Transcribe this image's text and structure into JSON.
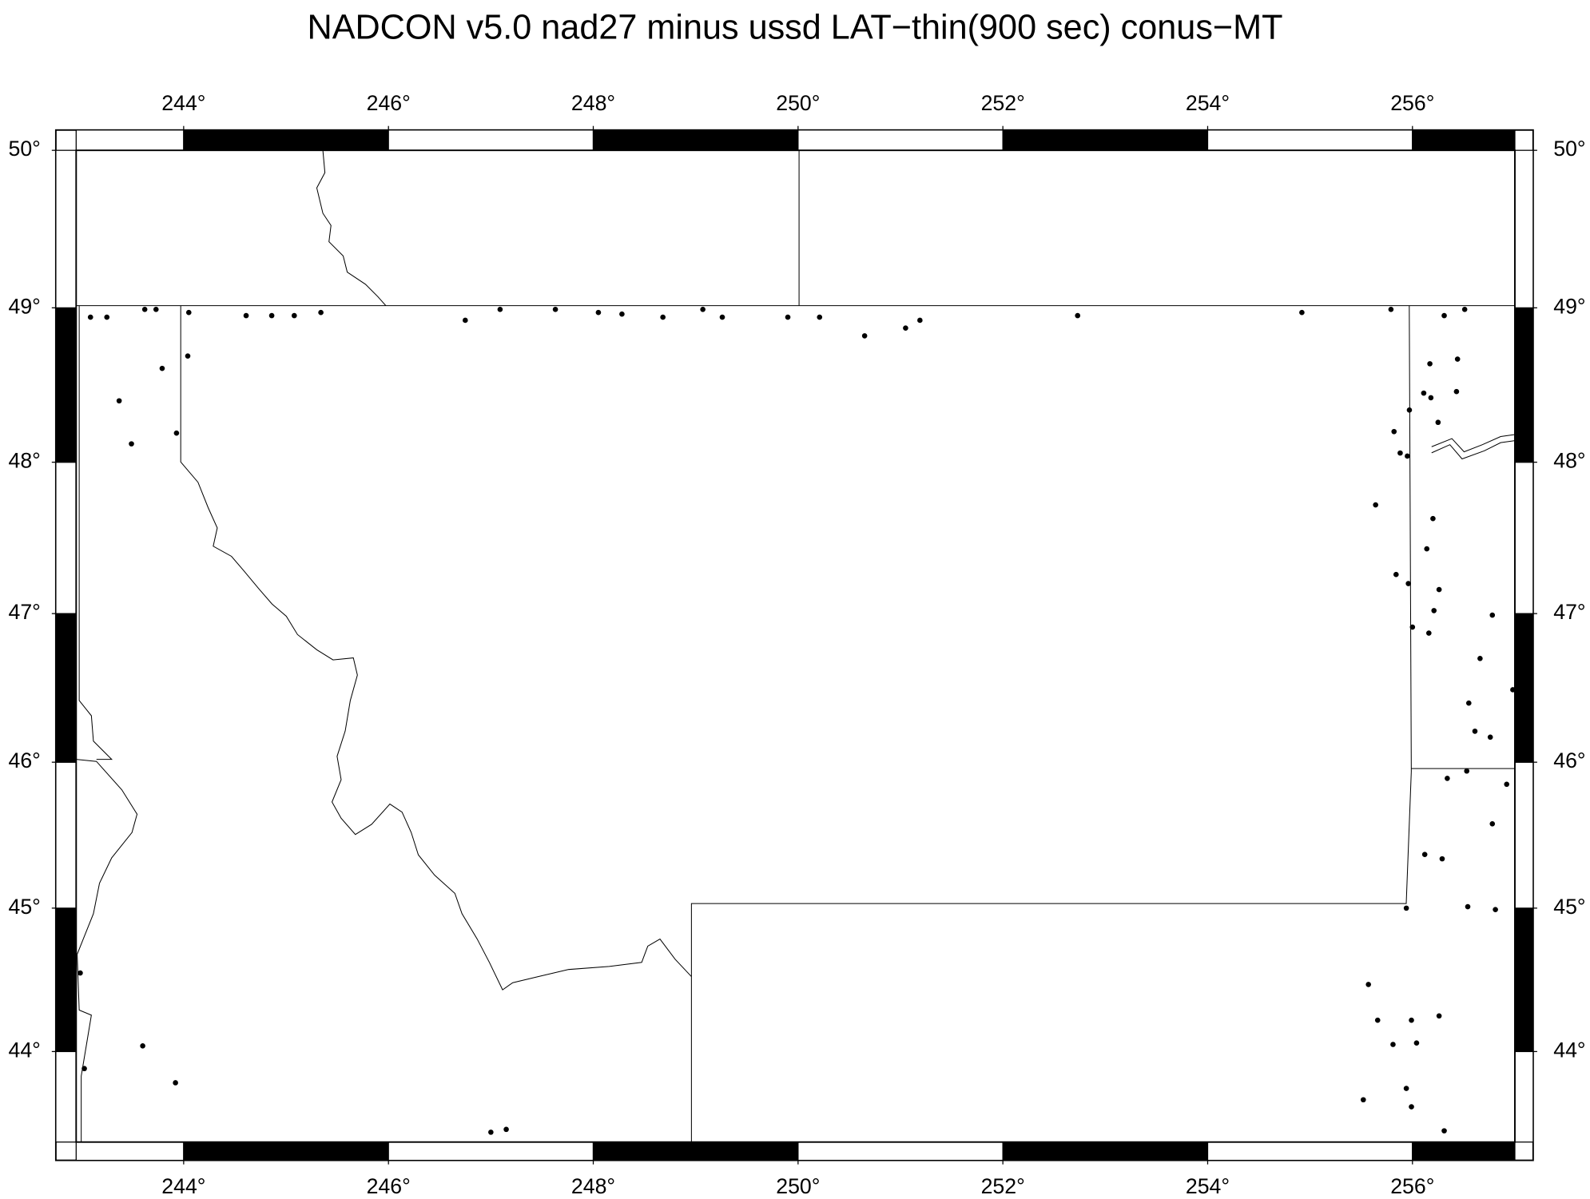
{
  "chart_data": {
    "type": "scatter",
    "title": "NADCON v5.0 nad27 minus ussd LAT−thin(900 sec) conus−MT",
    "projection": "mercator",
    "color": "#000000",
    "xlim": [
      242.95,
      257.0
    ],
    "ylim": [
      43.36,
      50.0
    ],
    "xticks": [
      {
        "value": 244,
        "label": "244°"
      },
      {
        "value": 246,
        "label": "246°"
      },
      {
        "value": 248,
        "label": "248°"
      },
      {
        "value": 250,
        "label": "250°"
      },
      {
        "value": 252,
        "label": "252°"
      },
      {
        "value": 254,
        "label": "254°"
      },
      {
        "value": 256,
        "label": "256°"
      }
    ],
    "yticks": [
      {
        "value": 44,
        "label": "44°"
      },
      {
        "value": 45,
        "label": "45°"
      },
      {
        "value": 46,
        "label": "46°"
      },
      {
        "value": 47,
        "label": "47°"
      },
      {
        "value": 48,
        "label": "48°"
      },
      {
        "value": 49,
        "label": "49°"
      },
      {
        "value": 50,
        "label": "50°"
      }
    ],
    "x": [
      243.09,
      243.25,
      243.62,
      243.73,
      244.05,
      244.61,
      244.86,
      245.08,
      245.34,
      246.75,
      247.09,
      247.63,
      248.05,
      248.28,
      248.68,
      249.07,
      249.26,
      249.9,
      250.21,
      250.65,
      251.05,
      251.19,
      252.73,
      254.92,
      255.79,
      256.31,
      256.51,
      243.79,
      243.37,
      244.04,
      243.49,
      243.93,
      255.97,
      256.17,
      256.44,
      256.11,
      256.18,
      256.43,
      256.25,
      255.82,
      255.88,
      255.95,
      255.64,
      256.2,
      256.14,
      255.84,
      255.96,
      256.26,
      256.21,
      256.78,
      256.0,
      256.16,
      256.66,
      256.98,
      256.55,
      256.61,
      256.76,
      256.53,
      256.34,
      256.92,
      256.78,
      256.12,
      256.29,
      256.54,
      256.81,
      255.94,
      255.57,
      255.66,
      255.99,
      256.26,
      255.81,
      256.04,
      255.94,
      255.52,
      255.99,
      256.31,
      242.99,
      243.6,
      243.03,
      243.92,
      247.0,
      247.15
    ],
    "values": [
      48.94,
      48.94,
      48.99,
      48.99,
      48.97,
      48.95,
      48.95,
      48.95,
      48.97,
      48.92,
      48.99,
      48.99,
      48.97,
      48.96,
      48.94,
      48.99,
      48.94,
      48.94,
      48.94,
      48.82,
      48.87,
      48.92,
      48.95,
      48.97,
      48.99,
      48.95,
      48.99,
      48.61,
      48.4,
      48.69,
      48.12,
      48.19,
      48.34,
      48.64,
      48.67,
      48.45,
      48.42,
      48.46,
      48.26,
      48.2,
      48.06,
      48.04,
      47.72,
      47.63,
      47.43,
      47.26,
      47.2,
      47.16,
      47.02,
      46.99,
      46.91,
      46.87,
      46.7,
      46.49,
      46.4,
      46.21,
      46.17,
      45.94,
      45.89,
      45.85,
      45.58,
      45.37,
      45.34,
      45.01,
      44.99,
      45.0,
      44.47,
      44.22,
      44.22,
      44.25,
      44.05,
      44.06,
      43.74,
      43.66,
      43.61,
      43.44,
      44.55,
      44.04,
      43.88,
      43.78,
      43.43,
      43.45
    ]
  }
}
